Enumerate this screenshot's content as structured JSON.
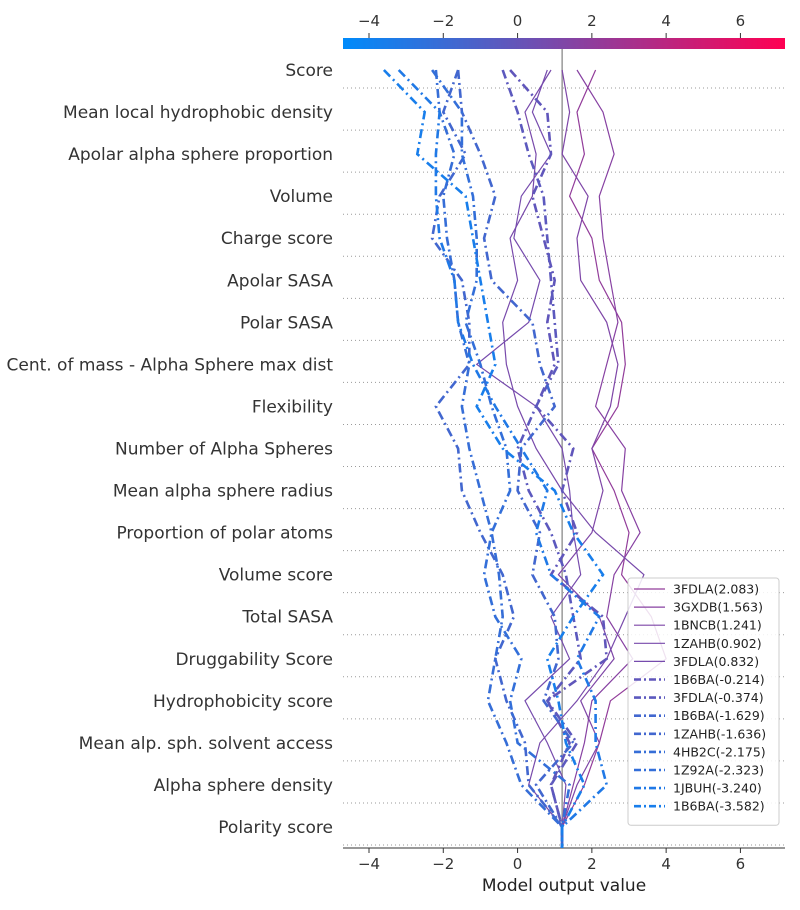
{
  "chart_data": {
    "type": "line",
    "xlabel": "Model output value",
    "base_value": 1.2,
    "xlim": [
      -4.7,
      7.2
    ],
    "x_ticks": [
      -4,
      -2,
      0,
      2,
      4,
      6
    ],
    "x_tick_labels": [
      "−4",
      "−2",
      "0",
      "2",
      "4",
      "6"
    ],
    "colorbar": {
      "colors": [
        "#008bfb",
        "#ff0052"
      ],
      "range": [
        -4.7,
        7.2
      ]
    },
    "features": [
      "Score",
      "Mean local hydrophobic density",
      "Apolar alpha sphere proportion",
      "Volume",
      "Charge score",
      "Apolar SASA",
      "Polar SASA",
      "Cent. of mass - Alpha Sphere max dist",
      "Flexibility",
      "Number of Alpha Spheres",
      "Mean alpha sphere radius",
      "Proportion of polar atoms",
      "Volume score",
      "Total SASA",
      "Druggability Score",
      "Hydrophobicity score",
      "Mean alp. sph. solvent access",
      "Alpha sphere density",
      "Polarity score"
    ],
    "series": [
      {
        "name": "3FDLA(2.083)",
        "style": "solid",
        "values": [
          2.1,
          1.6,
          1.8,
          1.4,
          2.0,
          2.2,
          2.8,
          2.9,
          2.7,
          2.0,
          2.6,
          3.0,
          2.8,
          3.6,
          4.0,
          2.5,
          2.2,
          1.8,
          1.2
        ]
      },
      {
        "name": "3GXDB(1.563)",
        "style": "solid",
        "values": [
          1.6,
          2.3,
          2.6,
          2.2,
          2.3,
          2.5,
          2.7,
          2.4,
          2.1,
          2.9,
          2.8,
          3.3,
          2.6,
          2.4,
          3.1,
          2.0,
          1.8,
          1.5,
          1.2
        ]
      },
      {
        "name": "1BNCB(1.241)",
        "style": "solid",
        "values": [
          1.2,
          1.4,
          1.2,
          1.9,
          1.6,
          1.7,
          2.4,
          2.7,
          2.5,
          2.0,
          2.3,
          2.0,
          1.1,
          2.2,
          2.6,
          1.7,
          2.2,
          1.6,
          1.2
        ]
      },
      {
        "name": "1ZAHB(0.902)",
        "style": "solid",
        "values": [
          0.9,
          0.2,
          0.5,
          0.4,
          -0.2,
          0.0,
          -0.4,
          -0.3,
          0.0,
          0.5,
          1.2,
          2.1,
          3.4,
          2.9,
          2.4,
          1.6,
          0.6,
          0.3,
          1.2
        ]
      },
      {
        "name": "3FDLA(0.832)",
        "style": "solid",
        "values": [
          0.8,
          0.4,
          0.9,
          0.1,
          -0.1,
          0.6,
          0.3,
          -1.1,
          0.5,
          1.2,
          1.4,
          1.5,
          1.7,
          0.9,
          1.4,
          0.2,
          0.8,
          1.3,
          1.2
        ]
      },
      {
        "name": "1B6BA(-0.214)",
        "style": "dashdot",
        "values": [
          -0.2,
          0.8,
          0.9,
          0.4,
          0.7,
          1.0,
          0.8,
          1.0,
          0.5,
          1.5,
          1.2,
          1.6,
          0.9,
          2.3,
          2.4,
          0.8,
          1.4,
          0.9,
          1.2
        ]
      },
      {
        "name": "3FDLA(-0.374)",
        "style": "dashdot",
        "values": [
          -0.4,
          0.0,
          0.3,
          0.7,
          0.8,
          0.9,
          1.0,
          1.1,
          0.5,
          0.0,
          0.3,
          0.9,
          1.3,
          1.5,
          1.7,
          0.8,
          1.6,
          0.9,
          1.2
        ]
      },
      {
        "name": "1B6BA(-1.629)",
        "style": "dashdot",
        "values": [
          -1.6,
          -1.5,
          -1.0,
          -0.6,
          -0.9,
          -0.7,
          0.4,
          0.6,
          1.0,
          0.1,
          0.0,
          0.6,
          0.4,
          1.0,
          1.1,
          0.7,
          1.5,
          0.5,
          1.2
        ]
      },
      {
        "name": "1ZAHB(-1.636)",
        "style": "dashdot",
        "values": [
          -1.6,
          -2.0,
          -1.4,
          -2.1,
          -2.3,
          -1.5,
          -1.3,
          -1.3,
          -2.2,
          -1.6,
          -1.5,
          -1.0,
          -0.4,
          -0.1,
          -0.6,
          -0.3,
          0.2,
          0.3,
          1.2
        ]
      },
      {
        "name": "4HB2C(-2.175)",
        "style": "dashdot",
        "values": [
          -2.2,
          -2.1,
          -1.7,
          -2.0,
          -1.9,
          -1.7,
          -1.6,
          -1.3,
          -1.5,
          -1.3,
          -1.0,
          -0.7,
          -0.5,
          -0.4,
          -0.6,
          -0.8,
          -0.3,
          0.1,
          1.2
        ]
      },
      {
        "name": "1Z92A(-2.323)",
        "style": "dashdot",
        "values": [
          -2.3,
          -1.5,
          -1.5,
          -1.2,
          -1.1,
          -1.1,
          -1.4,
          -1.0,
          -0.7,
          -0.3,
          -0.2,
          -0.7,
          -0.9,
          -0.6,
          0.1,
          -0.2,
          0.0,
          1.4,
          1.2
        ]
      },
      {
        "name": "1JBUH(-3.240)",
        "style": "dashdot",
        "values": [
          -3.2,
          -2.1,
          -2.2,
          -2.2,
          -2.1,
          -1.7,
          -1.6,
          -1.2,
          -0.6,
          0.1,
          0.8,
          0.5,
          0.9,
          2.2,
          1.6,
          2.1,
          2.1,
          2.4,
          1.2
        ]
      },
      {
        "name": "1B6BA(-3.582)",
        "style": "dashdot",
        "values": [
          -3.6,
          -2.5,
          -2.7,
          -1.4,
          -1.2,
          -1.0,
          -0.8,
          -0.6,
          -1.1,
          -0.4,
          1.0,
          1.5,
          2.3,
          1.5,
          0.8,
          1.1,
          1.3,
          1.8,
          1.2
        ]
      }
    ],
    "legend_position": "lower-right"
  }
}
